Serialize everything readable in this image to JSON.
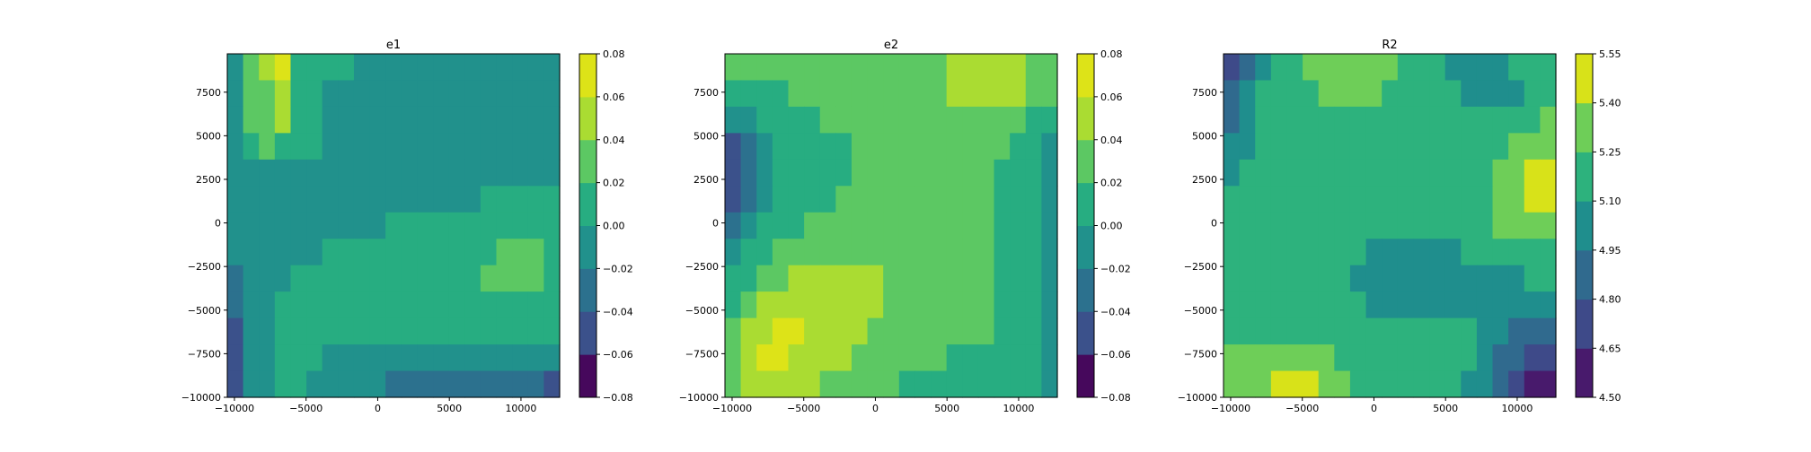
{
  "chart_data": [
    {
      "type": "heatmap",
      "title": "e1",
      "xlim": [
        -10500,
        12700
      ],
      "ylim": [
        -10000,
        9700
      ],
      "xticks": [
        "−10000",
        "−5000",
        "0",
        "5000",
        "10000"
      ],
      "xtick_values": [
        -10000,
        -5000,
        0,
        5000,
        10000
      ],
      "yticks": [
        "−10000",
        "−7500",
        "−5000",
        "−2500",
        "0",
        "2500",
        "5000",
        "7500"
      ],
      "ytick_values": [
        -10000,
        -7500,
        -5000,
        -2500,
        0,
        2500,
        5000,
        7500
      ],
      "colorbar": {
        "levels": [
          -0.08,
          -0.06,
          -0.04,
          -0.02,
          0.0,
          0.02,
          0.04,
          0.06,
          0.08
        ],
        "labels": [
          "−0.08",
          "−0.06",
          "−0.04",
          "−0.02",
          "0.00",
          "0.02",
          "0.04",
          "0.06",
          "0.08"
        ]
      },
      "field_band_index": [
        [
          3,
          5,
          6,
          7,
          4,
          4,
          4,
          4,
          3,
          3,
          3,
          3,
          3,
          3,
          3,
          3,
          3,
          3,
          3,
          3,
          3
        ],
        [
          3,
          5,
          5,
          6,
          4,
          4,
          3,
          3,
          3,
          3,
          3,
          3,
          3,
          3,
          3,
          3,
          3,
          3,
          3,
          3,
          3
        ],
        [
          3,
          5,
          5,
          6,
          4,
          4,
          3,
          3,
          3,
          3,
          3,
          3,
          3,
          3,
          3,
          3,
          3,
          3,
          3,
          3,
          3
        ],
        [
          3,
          4,
          5,
          4,
          4,
          4,
          3,
          3,
          3,
          3,
          3,
          3,
          3,
          3,
          3,
          3,
          3,
          3,
          3,
          3,
          3
        ],
        [
          3,
          3,
          3,
          3,
          3,
          3,
          3,
          3,
          3,
          3,
          3,
          3,
          3,
          3,
          3,
          3,
          3,
          3,
          3,
          3,
          3
        ],
        [
          3,
          3,
          3,
          3,
          3,
          3,
          3,
          3,
          3,
          3,
          3,
          3,
          3,
          3,
          3,
          3,
          4,
          4,
          4,
          4,
          4
        ],
        [
          3,
          3,
          3,
          3,
          3,
          3,
          3,
          3,
          3,
          3,
          4,
          4,
          4,
          4,
          4,
          4,
          4,
          4,
          4,
          4,
          4
        ],
        [
          3,
          3,
          3,
          3,
          3,
          3,
          4,
          4,
          4,
          4,
          4,
          4,
          4,
          4,
          4,
          4,
          4,
          5,
          5,
          5,
          4
        ],
        [
          2,
          3,
          3,
          3,
          4,
          4,
          4,
          4,
          4,
          4,
          4,
          4,
          4,
          4,
          4,
          4,
          5,
          5,
          5,
          5,
          4
        ],
        [
          2,
          3,
          3,
          4,
          4,
          4,
          4,
          4,
          4,
          4,
          4,
          4,
          4,
          4,
          4,
          4,
          4,
          4,
          4,
          4,
          4
        ],
        [
          1,
          3,
          3,
          4,
          4,
          4,
          4,
          4,
          4,
          4,
          4,
          4,
          4,
          4,
          4,
          4,
          4,
          4,
          4,
          4,
          4
        ],
        [
          1,
          3,
          3,
          4,
          4,
          4,
          3,
          3,
          3,
          3,
          3,
          3,
          3,
          3,
          3,
          3,
          3,
          3,
          3,
          3,
          3
        ],
        [
          1,
          3,
          3,
          4,
          4,
          3,
          3,
          3,
          3,
          3,
          2,
          2,
          2,
          2,
          2,
          2,
          2,
          2,
          2,
          2,
          1
        ]
      ]
    },
    {
      "type": "heatmap",
      "title": "e2",
      "xlim": [
        -10500,
        12700
      ],
      "ylim": [
        -10000,
        9700
      ],
      "xticks": [
        "−10000",
        "−5000",
        "0",
        "5000",
        "10000"
      ],
      "xtick_values": [
        -10000,
        -5000,
        0,
        5000,
        10000
      ],
      "yticks": [
        "−10000",
        "−7500",
        "−5000",
        "−2500",
        "0",
        "2500",
        "5000",
        "7500"
      ],
      "ytick_values": [
        -10000,
        -7500,
        -5000,
        -2500,
        0,
        2500,
        5000,
        7500
      ],
      "colorbar": {
        "levels": [
          -0.08,
          -0.06,
          -0.04,
          -0.02,
          0.0,
          0.02,
          0.04,
          0.06,
          0.08
        ],
        "labels": [
          "−0.08",
          "−0.06",
          "−0.04",
          "−0.02",
          "0.00",
          "0.02",
          "0.04",
          "0.06",
          "0.08"
        ]
      },
      "field_band_index": [
        [
          5,
          5,
          5,
          5,
          5,
          5,
          5,
          5,
          5,
          5,
          5,
          5,
          5,
          5,
          6,
          6,
          6,
          6,
          6,
          5,
          5
        ],
        [
          4,
          4,
          4,
          4,
          5,
          5,
          5,
          5,
          5,
          5,
          5,
          5,
          5,
          5,
          6,
          6,
          6,
          6,
          6,
          5,
          5
        ],
        [
          3,
          3,
          4,
          4,
          4,
          4,
          5,
          5,
          5,
          5,
          5,
          5,
          5,
          5,
          5,
          5,
          5,
          5,
          5,
          4,
          4
        ],
        [
          1,
          2,
          3,
          4,
          4,
          4,
          4,
          4,
          5,
          5,
          5,
          5,
          5,
          5,
          5,
          5,
          5,
          5,
          4,
          4,
          3
        ],
        [
          1,
          2,
          3,
          4,
          4,
          4,
          4,
          4,
          5,
          5,
          5,
          5,
          5,
          5,
          5,
          5,
          5,
          4,
          4,
          4,
          3
        ],
        [
          1,
          2,
          3,
          4,
          4,
          4,
          4,
          5,
          5,
          5,
          5,
          5,
          5,
          5,
          5,
          5,
          5,
          4,
          4,
          4,
          3
        ],
        [
          2,
          3,
          4,
          4,
          4,
          5,
          5,
          5,
          5,
          5,
          5,
          5,
          5,
          5,
          5,
          5,
          5,
          4,
          4,
          4,
          3
        ],
        [
          3,
          4,
          4,
          5,
          5,
          5,
          5,
          5,
          5,
          5,
          5,
          5,
          5,
          5,
          5,
          5,
          5,
          4,
          4,
          4,
          3
        ],
        [
          4,
          4,
          5,
          5,
          6,
          6,
          6,
          6,
          6,
          6,
          5,
          5,
          5,
          5,
          5,
          5,
          5,
          4,
          4,
          4,
          3
        ],
        [
          4,
          5,
          6,
          6,
          6,
          6,
          6,
          6,
          6,
          6,
          5,
          5,
          5,
          5,
          5,
          5,
          5,
          4,
          4,
          4,
          3
        ],
        [
          5,
          6,
          6,
          7,
          7,
          6,
          6,
          6,
          6,
          5,
          5,
          5,
          5,
          5,
          5,
          5,
          5,
          4,
          4,
          4,
          3
        ],
        [
          5,
          6,
          7,
          7,
          6,
          6,
          6,
          6,
          5,
          5,
          5,
          5,
          5,
          5,
          4,
          4,
          4,
          4,
          4,
          4,
          3
        ],
        [
          5,
          6,
          6,
          6,
          6,
          6,
          5,
          5,
          5,
          5,
          5,
          4,
          4,
          4,
          4,
          4,
          4,
          4,
          4,
          4,
          3
        ]
      ]
    },
    {
      "type": "heatmap",
      "title": "R2",
      "xlim": [
        -10500,
        12700
      ],
      "ylim": [
        -10000,
        9700
      ],
      "xticks": [
        "−10000",
        "−5000",
        "0",
        "5000",
        "10000"
      ],
      "xtick_values": [
        -10000,
        -5000,
        0,
        5000,
        10000
      ],
      "yticks": [
        "−10000",
        "−7500",
        "−5000",
        "−2500",
        "0",
        "2500",
        "5000",
        "7500"
      ],
      "ytick_values": [
        -10000,
        -7500,
        -5000,
        -2500,
        0,
        2500,
        5000,
        7500
      ],
      "colorbar": {
        "levels": [
          4.5,
          4.65,
          4.8,
          4.95,
          5.1,
          5.25,
          5.4,
          5.55
        ],
        "labels": [
          "4.50",
          "4.65",
          "4.80",
          "4.95",
          "5.10",
          "5.25",
          "5.40",
          "5.55"
        ]
      },
      "field_band_index": [
        [
          1,
          2,
          3,
          4,
          4,
          5,
          5,
          5,
          5,
          5,
          5,
          4,
          4,
          4,
          3,
          3,
          3,
          3,
          4,
          4,
          4
        ],
        [
          2,
          3,
          4,
          4,
          4,
          4,
          5,
          5,
          5,
          5,
          4,
          4,
          4,
          4,
          4,
          3,
          3,
          3,
          3,
          4,
          4
        ],
        [
          2,
          3,
          4,
          4,
          4,
          4,
          4,
          4,
          4,
          4,
          4,
          4,
          4,
          4,
          4,
          4,
          4,
          4,
          4,
          4,
          5
        ],
        [
          3,
          3,
          4,
          4,
          4,
          4,
          4,
          4,
          4,
          4,
          4,
          4,
          4,
          4,
          4,
          4,
          4,
          4,
          5,
          5,
          5
        ],
        [
          3,
          4,
          4,
          4,
          4,
          4,
          4,
          4,
          4,
          4,
          4,
          4,
          4,
          4,
          4,
          4,
          4,
          5,
          5,
          6,
          6
        ],
        [
          4,
          4,
          4,
          4,
          4,
          4,
          4,
          4,
          4,
          4,
          4,
          4,
          4,
          4,
          4,
          4,
          4,
          5,
          5,
          6,
          6
        ],
        [
          4,
          4,
          4,
          4,
          4,
          4,
          4,
          4,
          4,
          4,
          4,
          4,
          4,
          4,
          4,
          4,
          4,
          5,
          5,
          5,
          5
        ],
        [
          4,
          4,
          4,
          4,
          4,
          4,
          4,
          4,
          4,
          3,
          3,
          3,
          3,
          3,
          3,
          4,
          4,
          4,
          4,
          4,
          4
        ],
        [
          4,
          4,
          4,
          4,
          4,
          4,
          4,
          4,
          3,
          3,
          3,
          3,
          3,
          3,
          3,
          3,
          3,
          3,
          3,
          4,
          4
        ],
        [
          4,
          4,
          4,
          4,
          4,
          4,
          4,
          4,
          4,
          3,
          3,
          3,
          3,
          3,
          3,
          3,
          3,
          3,
          3,
          3,
          3
        ],
        [
          4,
          4,
          4,
          4,
          4,
          4,
          4,
          4,
          4,
          4,
          4,
          4,
          4,
          4,
          4,
          4,
          3,
          3,
          2,
          2,
          2
        ],
        [
          5,
          5,
          5,
          5,
          5,
          5,
          5,
          4,
          4,
          4,
          4,
          4,
          4,
          4,
          4,
          4,
          3,
          2,
          2,
          1,
          1
        ],
        [
          5,
          5,
          5,
          6,
          6,
          6,
          5,
          5,
          4,
          4,
          4,
          4,
          4,
          4,
          4,
          3,
          3,
          2,
          1,
          0,
          0
        ]
      ]
    }
  ]
}
